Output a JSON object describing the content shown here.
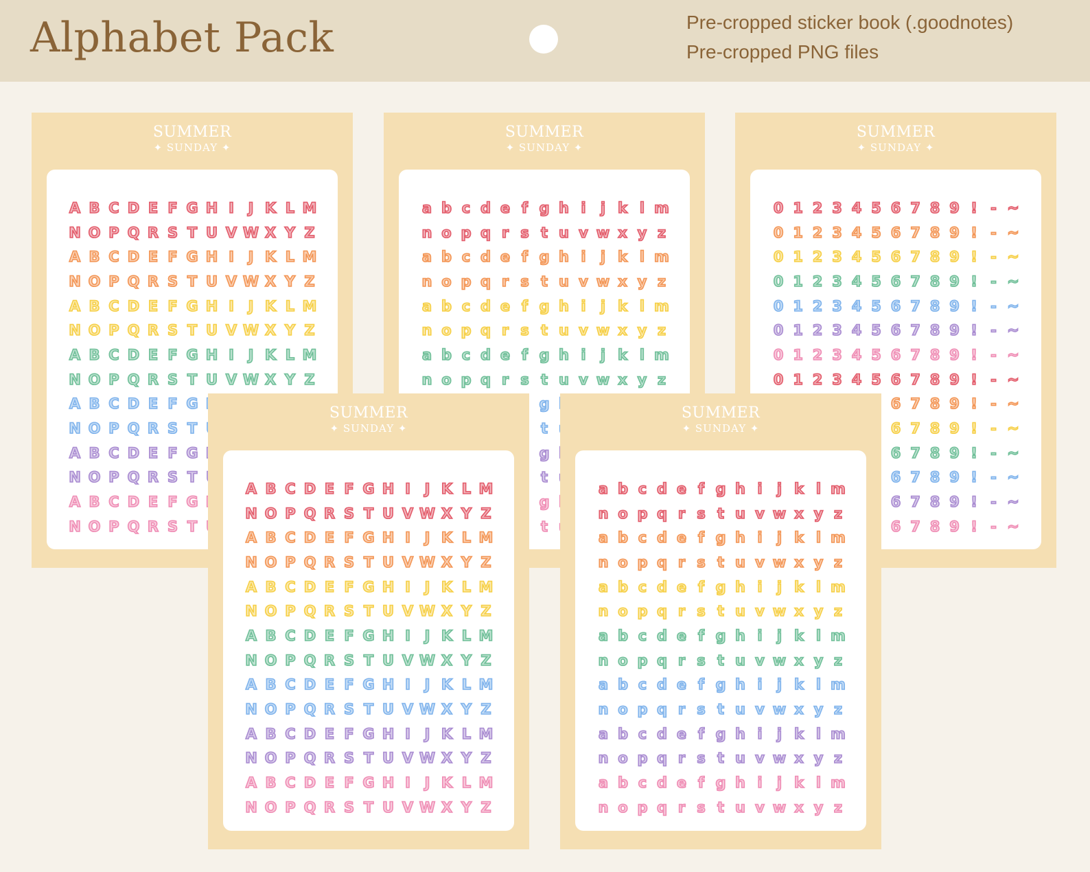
{
  "header": {
    "title": "Alphabet Pack",
    "line1": "Pre-cropped sticker book (.goodnotes)",
    "line2": "Pre-cropped PNG files"
  },
  "brand": {
    "line1": "SUMMER",
    "line2": "✦ SUNDAY ✦"
  },
  "colors": [
    "#e35b6a",
    "#f39554",
    "#f6cf45",
    "#6fbf98",
    "#7fb3ec",
    "#a98bd1",
    "#ef8cb4"
  ],
  "sheets": [
    {
      "rows": [
        "ABCDEFGHIJKLM",
        "NOPQRSTUVWXYZ",
        "ABCDEFGHIJKLM",
        "NOPQRSTUVWXYZ",
        "ABCDEFGHIJKLM",
        "NOPQRSTUVWXYZ",
        "ABCDEFGHIJKLM",
        "NOPQRSTUVWXYZ",
        "ABCDEFGHIJKLM",
        "NOPQRSTUVWXYZ",
        "ABCDEFGHIJKLM",
        "NOPQRSTUVWXYZ",
        "ABCDEFGHIJKLM",
        "NOPQRSTUVWXYZ"
      ],
      "colorIdx": [
        0,
        0,
        1,
        1,
        2,
        2,
        3,
        3,
        4,
        4,
        5,
        5,
        6,
        6
      ]
    },
    {
      "rows": [
        "abcdefghijklm",
        "nopqrstuvwxyz",
        "abcdefghijklm",
        "nopqrstuvwxyz",
        "abcdefghijklm",
        "nopqrstuvwxyz",
        "abcdefghijklm",
        "nopqrstuvwxyz",
        "abcdefghijklm",
        "nopqrstuvwxyz",
        "abcdefghijklm",
        "nopqrstuvwxyz",
        "abcdefghijklm",
        "nopqrstuvwxyz"
      ],
      "colorIdx": [
        0,
        0,
        1,
        1,
        2,
        2,
        3,
        3,
        4,
        4,
        5,
        5,
        6,
        6
      ]
    },
    {
      "rows": [
        "0123456789!-~",
        "0123456789!-~",
        "0123456789!-~",
        "0123456789!-~",
        "0123456789!-~",
        "0123456789!-~",
        "0123456789!-~",
        "0123456789!-~",
        "0123456789!-~",
        "0123456789!-~",
        "0123456789!-~",
        "0123456789!-~",
        "0123456789!-~",
        "0123456789!-~"
      ],
      "colorIdx": [
        0,
        1,
        2,
        3,
        4,
        5,
        6,
        0,
        1,
        2,
        3,
        4,
        5,
        6
      ]
    },
    {
      "rows": [
        "ABCDEFGHIJKLM",
        "NOPQRSTUVWXYZ",
        "ABCDEFGHIJKLM",
        "NOPQRSTUVWXYZ",
        "ABCDEFGHIJKLM",
        "NOPQRSTUVWXYZ",
        "ABCDEFGHIJKLM",
        "NOPQRSTUVWXYZ",
        "ABCDEFGHIJKLM",
        "NOPQRSTUVWXYZ",
        "ABCDEFGHIJKLM",
        "NOPQRSTUVWXYZ",
        "ABCDEFGHIJKLM",
        "NOPQRSTUVWXYZ"
      ],
      "colorIdx": [
        0,
        0,
        1,
        1,
        2,
        2,
        3,
        3,
        4,
        4,
        5,
        5,
        6,
        6
      ]
    },
    {
      "rows": [
        "abcdefghijklm",
        "nopqrstuvwxyz",
        "abcdefghijklm",
        "nopqrstuvwxyz",
        "abcdefghijklm",
        "nopqrstuvwxyz",
        "abcdefghijklm",
        "nopqrstuvwxyz",
        "abcdefghijklm",
        "nopqrstuvwxyz",
        "abcdefghijklm",
        "nopqrstuvwxyz",
        "abcdefghijklm",
        "nopqrstuvwxyz"
      ],
      "colorIdx": [
        0,
        0,
        1,
        1,
        2,
        2,
        3,
        3,
        4,
        4,
        5,
        5,
        6,
        6
      ]
    }
  ]
}
